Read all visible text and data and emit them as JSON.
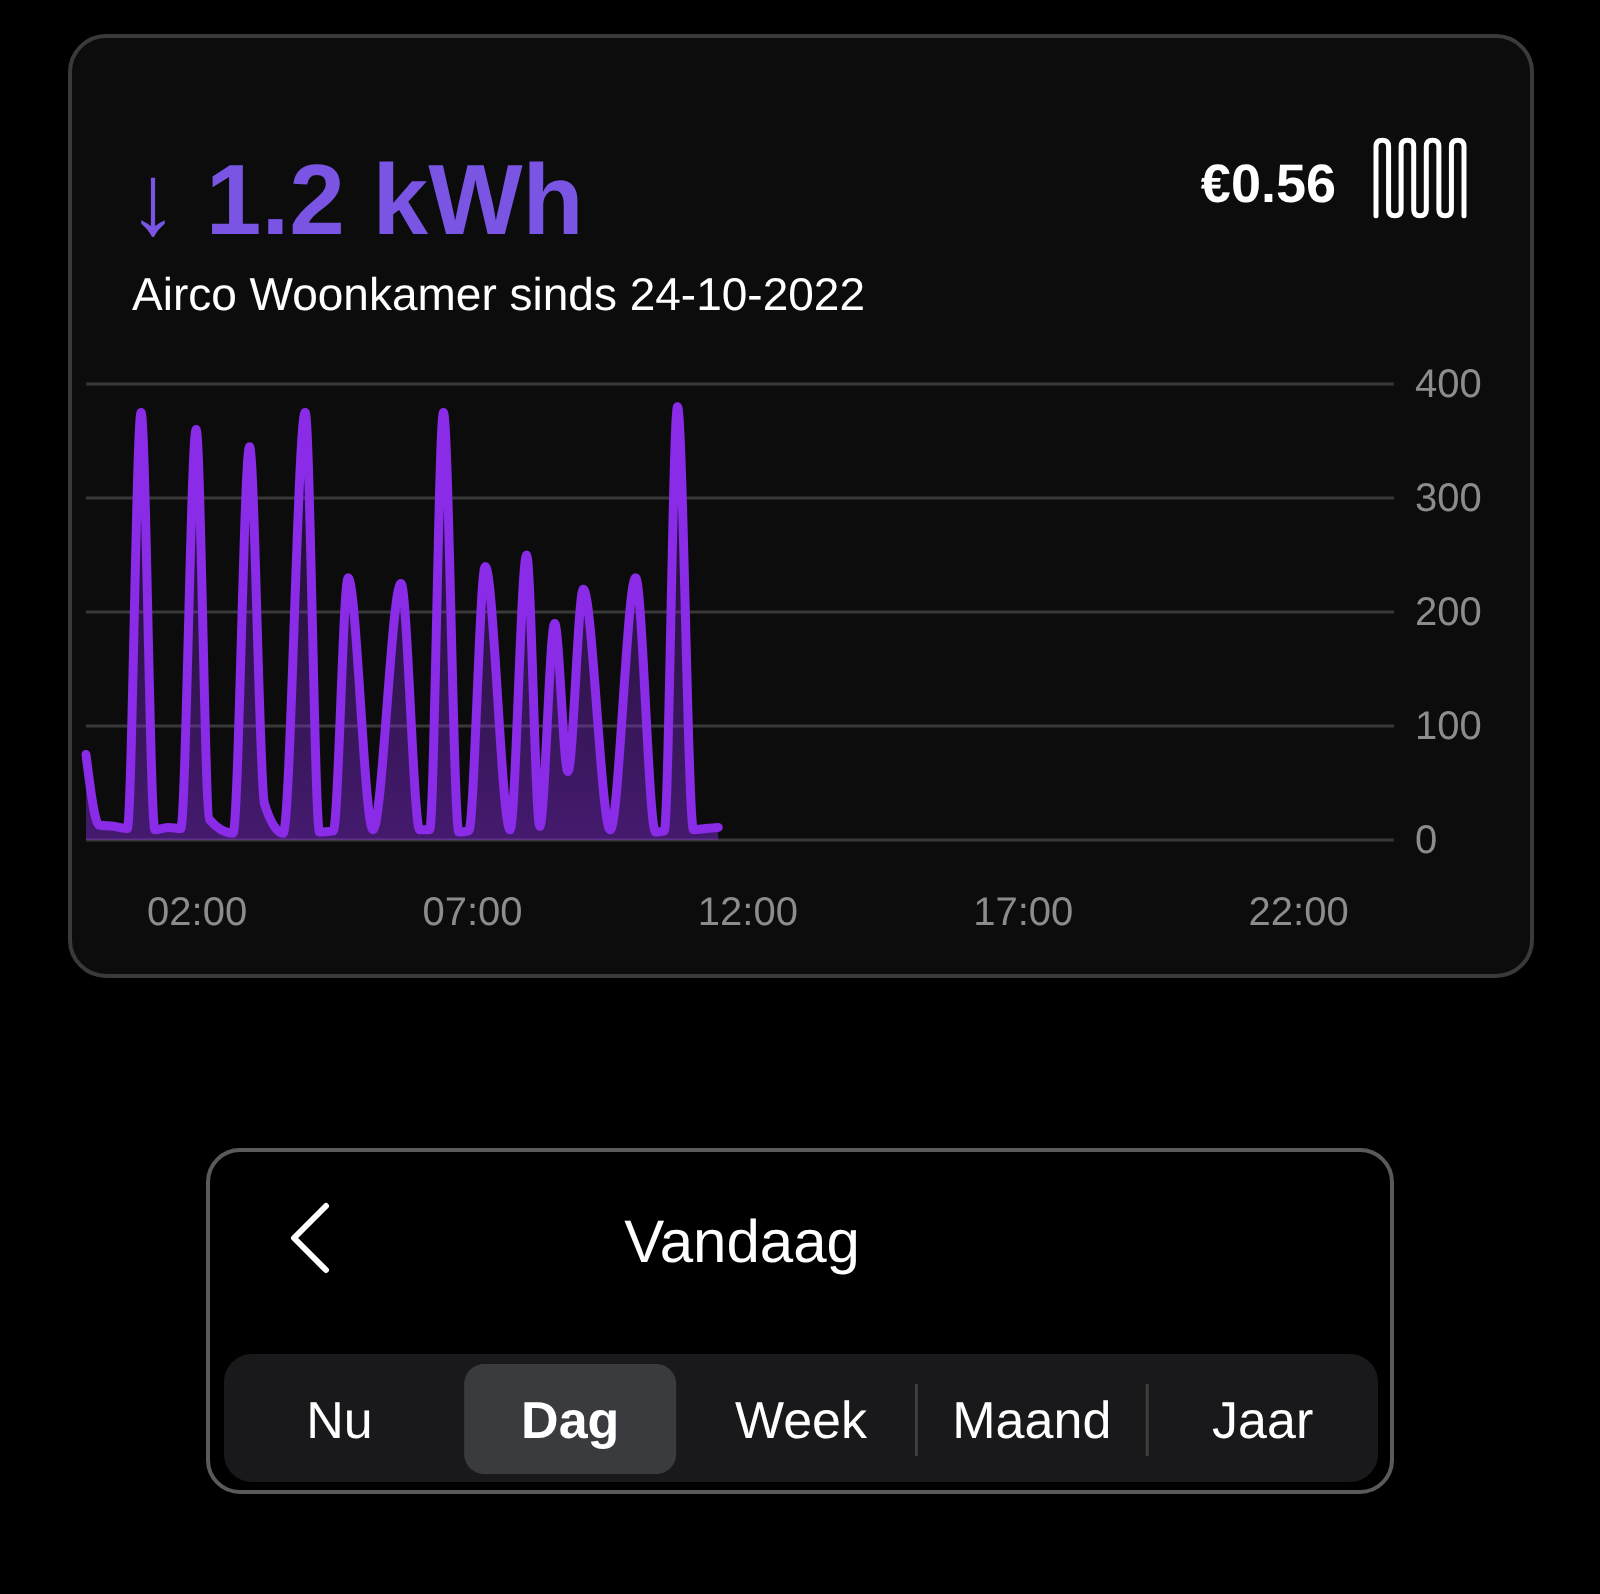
{
  "chart_data": [
    {
      "type": "area",
      "title": "↓ 1.2 kWh",
      "subtitle": "Airco Woonkamer sinds 24-10-2022",
      "annotations": [
        "€0.56"
      ],
      "x": [
        0,
        0.24,
        0.5,
        0.75,
        1.0,
        1.25,
        1.5,
        1.72,
        2.0,
        2.24,
        2.67,
        2.97,
        3.24,
        3.58,
        3.98,
        4.24,
        4.49,
        4.76,
        5.21,
        5.72,
        6.06,
        6.24,
        6.49,
        6.77,
        6.95,
        7.25,
        7.7,
        8.0,
        8.24,
        8.51,
        8.75,
        9.03,
        9.52,
        9.98,
        10.34,
        10.5,
        10.74,
        11.03,
        11.25,
        11.48
      ],
      "values": [
        75,
        13,
        12,
        10,
        375,
        9,
        11,
        10,
        360,
        18,
        6,
        345,
        32,
        6,
        375,
        7,
        8,
        230,
        9,
        225,
        9,
        9,
        375,
        7,
        8,
        240,
        9,
        250,
        12,
        190,
        60,
        220,
        9,
        230,
        7,
        8,
        380,
        9,
        10,
        11
      ],
      "color": "#8a2be8",
      "xlim": [
        0,
        23.75
      ],
      "xticks": [
        {
          "value": 2,
          "label": "02:00"
        },
        {
          "value": 7,
          "label": "07:00"
        },
        {
          "value": 12,
          "label": "12:00"
        },
        {
          "value": 17,
          "label": "17:00"
        },
        {
          "value": 22,
          "label": "22:00"
        }
      ],
      "ylim": [
        0,
        400
      ],
      "yticks": [
        0,
        100,
        200,
        300,
        400
      ],
      "grid": "y"
    },
    {
      "type": "other",
      "title": "Vandaag",
      "annotations": [
        "Nu",
        "Dag",
        "Week",
        "Maand",
        "Jaar"
      ]
    }
  ]
}
